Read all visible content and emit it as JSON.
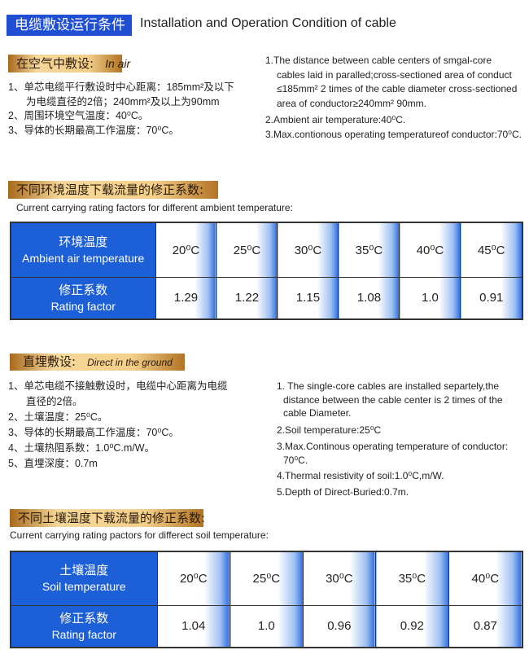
{
  "header": {
    "title_cn": "电缆敷设运行条件",
    "title_en": "Installation and Operation Condition of cable"
  },
  "air": {
    "badge_cn": "在空气中敷设:",
    "badge_en": "In air",
    "cn": [
      "1、单芯电缆平行敷设时中心距离：185mm²及以下",
      "为电缆直径的2倍；240mm²及以上为90mm",
      "2、周围环境空气温度：40⁰C。",
      "3、导体的长期最高工作温度：70⁰C。"
    ],
    "en": [
      "1.The distance between cable centers of smgal-core",
      "cables laid in paralled;cross-sectioned area of conduct",
      "≤185mm² 2 times of the cable diameter cross-sectioned",
      "area of conductor≥240mm² 90mm.",
      "2.Ambient air temperature:40⁰C.",
      "3.Max.contionous operating temperatureof conductor:70⁰C."
    ]
  },
  "air_table": {
    "badge_cn": "不同环境温度下载流量的修正系数:",
    "subtitle": "Current carrying rating factors for different ambient temperature:",
    "row1_cn": "环境温度",
    "row1_en": "Ambient  air temperature",
    "row2_cn": "修正系数",
    "row2_en": "Rating factor",
    "temps": [
      "20⁰C",
      "25⁰C",
      "30⁰C",
      "35⁰C",
      "40⁰C",
      "45⁰C"
    ],
    "factors": [
      "1.29",
      "1.22",
      "1.15",
      "1.08",
      "1.0",
      "0.91"
    ]
  },
  "ground": {
    "badge_cn": "直埋敷设:",
    "badge_en": "Direct in the ground",
    "cn": [
      "1、单芯电缆不接触敷设时，电缆中心距离为电缆",
      "直径的2倍。",
      "2、土壤温度：25⁰C。",
      "3、导体的长期最高工作温度：70⁰C。",
      "4、土壤热阻系数：1.0⁰C.m/W。",
      "5、直埋深度：0.7m"
    ],
    "en": [
      "1.  The single-core cables are installed separtely,the",
      "distance between the cable center is 2 times of the",
      "cable Diameter.",
      "2.Soil temperature:25⁰C",
      "3.Max.Continous operating temperature of conductor:",
      "70⁰C.",
      "4.Thermal resistivity of soil:1.0⁰C,m/W.",
      "5.Depth of Direct-Buried:0.7m."
    ]
  },
  "soil_table": {
    "badge_cn": "不同土壤温度下载流量的修正系数:",
    "subtitle": "Current carrying rating pactors for differect soil temperature:",
    "row1_cn": "土壤温度",
    "row1_en": "Soil temperature",
    "row2_cn": "修正系数",
    "row2_en": "Rating factor",
    "temps": [
      "20⁰C",
      "25⁰C",
      "30⁰C",
      "35⁰C",
      "40⁰C"
    ],
    "factors": [
      "1.04",
      "1.0",
      "0.96",
      "0.92",
      "0.87"
    ]
  }
}
